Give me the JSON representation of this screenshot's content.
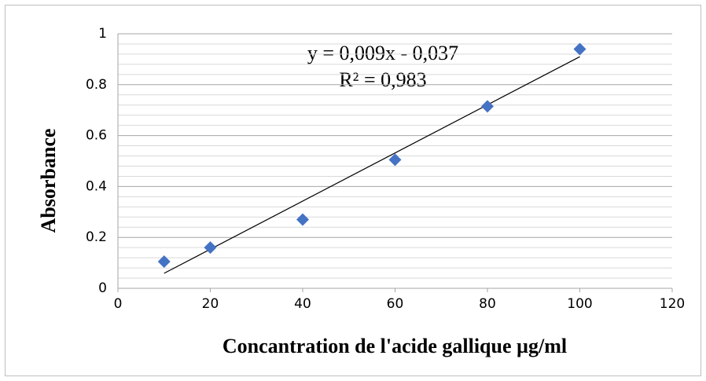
{
  "chart_data": {
    "type": "scatter",
    "x_label": "Concantration de l'acide gallique µg/ml",
    "y_label": "Absorbance",
    "annotations": [
      "y = 0,009x - 0,037",
      "R² = 0,983"
    ],
    "series": [
      {
        "color": "#4472c4",
        "x": [
          10,
          20,
          40,
          60,
          80,
          100
        ],
        "values": [
          0.105,
          0.16,
          0.27,
          0.505,
          0.715,
          0.94
        ]
      }
    ],
    "trendline": {
      "color": "#000000",
      "x": [
        10,
        100
      ],
      "values": [
        0.059,
        0.91
      ]
    },
    "xlim": [
      0,
      120
    ],
    "xticks": [
      0,
      20,
      40,
      60,
      80,
      100,
      120
    ],
    "ylim": [
      0,
      1
    ],
    "yticks": [
      0,
      0.2,
      0.4,
      0.6,
      0.8,
      1
    ],
    "y_minor_ticks": [
      0.04,
      0.08,
      0.12,
      0.16,
      0.24,
      0.28,
      0.32,
      0.36,
      0.44,
      0.48,
      0.52,
      0.56,
      0.64,
      0.68,
      0.72,
      0.76,
      0.84,
      0.88,
      0.92,
      0.96
    ],
    "grid": true
  }
}
